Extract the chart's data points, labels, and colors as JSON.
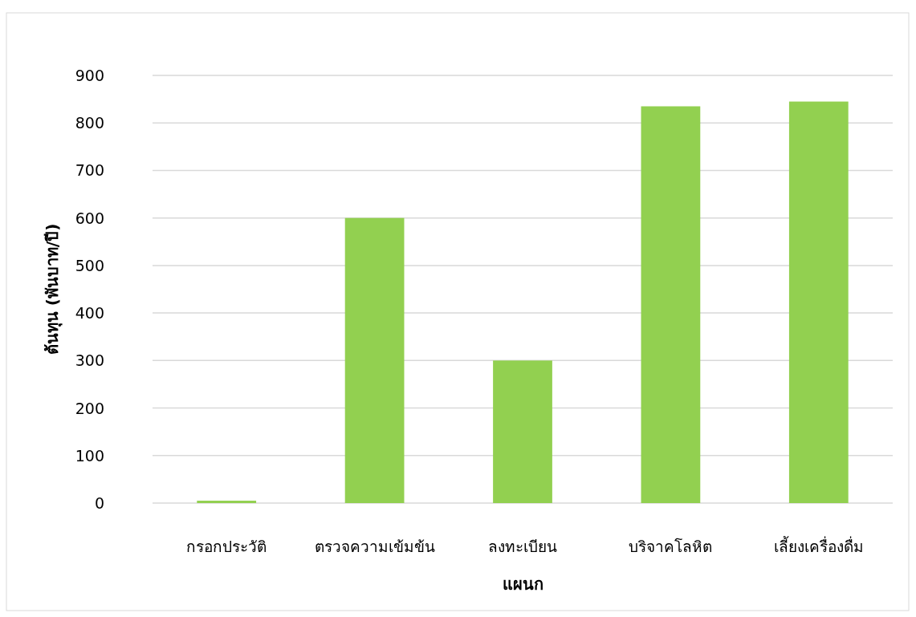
{
  "chart_data": {
    "type": "bar",
    "xlabel": "แผนก",
    "ylabel": "ต้นทุน (พันบาท/ปี)",
    "categories": [
      "กรอกประวัติ",
      "ตรวจความเข้มข้น",
      "ลงทะเบียน",
      "บริจาคโลหิต",
      "เลี้ยงเครื่องดื่ม"
    ],
    "values": [
      5,
      600,
      300,
      835,
      845
    ],
    "color": "#92d050",
    "ylim": [
      0,
      900
    ],
    "yticks": [
      0,
      100,
      200,
      300,
      400,
      500,
      600,
      700,
      800,
      900
    ],
    "grid": "y"
  }
}
